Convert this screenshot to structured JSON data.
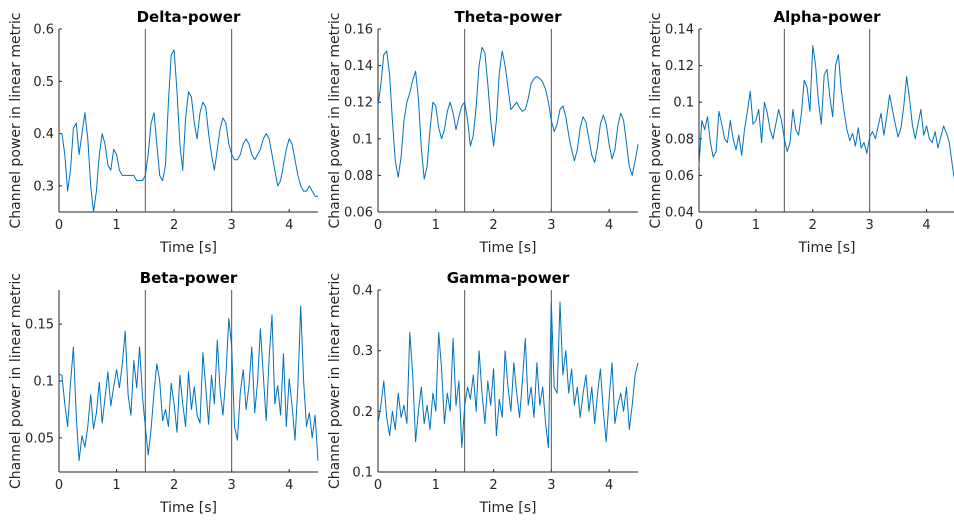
{
  "chart_data": [
    {
      "type": "line",
      "title": "Delta-power",
      "xlabel": "Time [s]",
      "ylabel": "Channel power in linear metric",
      "xlim": [
        0,
        4.5
      ],
      "ylim": [
        0.25,
        0.6
      ],
      "xticks": [
        "0",
        "1",
        "2",
        "3",
        "4"
      ],
      "yticks": [
        "0.3",
        "0.4",
        "0.5",
        "0.6"
      ],
      "xtick_values": [
        0,
        1,
        2,
        3,
        4
      ],
      "ytick_values": [
        0.3,
        0.4,
        0.5,
        0.6
      ],
      "vlines": [
        1.5,
        3.0
      ],
      "color": "#0072BD",
      "x": [
        0,
        0.05,
        0.1,
        0.15,
        0.2,
        0.25,
        0.3,
        0.35,
        0.4,
        0.45,
        0.5,
        0.55,
        0.6,
        0.65,
        0.7,
        0.75,
        0.8,
        0.85,
        0.9,
        0.95,
        1,
        1.05,
        1.1,
        1.15,
        1.2,
        1.25,
        1.3,
        1.35,
        1.4,
        1.45,
        1.5,
        1.55,
        1.6,
        1.65,
        1.7,
        1.75,
        1.8,
        1.85,
        1.9,
        1.95,
        2,
        2.05,
        2.1,
        2.15,
        2.2,
        2.25,
        2.3,
        2.35,
        2.4,
        2.45,
        2.5,
        2.55,
        2.6,
        2.65,
        2.7,
        2.75,
        2.8,
        2.85,
        2.9,
        2.95,
        3,
        3.05,
        3.1,
        3.15,
        3.2,
        3.25,
        3.3,
        3.35,
        3.4,
        3.45,
        3.5,
        3.55,
        3.6,
        3.65,
        3.7,
        3.75,
        3.8,
        3.85,
        3.9,
        3.95,
        4,
        4.05,
        4.1,
        4.15,
        4.2,
        4.25,
        4.3,
        4.35,
        4.4,
        4.45,
        4.5
      ],
      "series": [
        {
          "values": [
            0.4,
            0.4,
            0.36,
            0.29,
            0.33,
            0.41,
            0.42,
            0.36,
            0.4,
            0.44,
            0.39,
            0.3,
            0.25,
            0.29,
            0.36,
            0.4,
            0.38,
            0.34,
            0.33,
            0.37,
            0.36,
            0.33,
            0.32,
            0.32,
            0.32,
            0.32,
            0.32,
            0.31,
            0.31,
            0.31,
            0.32,
            0.36,
            0.42,
            0.44,
            0.38,
            0.32,
            0.31,
            0.34,
            0.46,
            0.55,
            0.56,
            0.48,
            0.38,
            0.33,
            0.43,
            0.48,
            0.47,
            0.42,
            0.39,
            0.44,
            0.46,
            0.45,
            0.4,
            0.36,
            0.33,
            0.37,
            0.41,
            0.43,
            0.42,
            0.38,
            0.36,
            0.35,
            0.35,
            0.36,
            0.38,
            0.39,
            0.38,
            0.36,
            0.35,
            0.36,
            0.37,
            0.39,
            0.4,
            0.39,
            0.36,
            0.33,
            0.3,
            0.31,
            0.34,
            0.37,
            0.39,
            0.38,
            0.35,
            0.32,
            0.3,
            0.29,
            0.29,
            0.3,
            0.29,
            0.28,
            0.28
          ]
        }
      ]
    },
    {
      "type": "line",
      "title": "Theta-power",
      "xlabel": "Time [s]",
      "ylabel": "Channel power in linear metric",
      "xlim": [
        0,
        4.5
      ],
      "ylim": [
        0.06,
        0.16
      ],
      "xticks": [
        "0",
        "1",
        "2",
        "3",
        "4"
      ],
      "yticks": [
        "0.06",
        "0.08",
        "0.1",
        "0.12",
        "0.14",
        "0.16"
      ],
      "xtick_values": [
        0,
        1,
        2,
        3,
        4
      ],
      "ytick_values": [
        0.06,
        0.08,
        0.1,
        0.12,
        0.14,
        0.16
      ],
      "vlines": [
        1.5,
        3.0
      ],
      "color": "#0072BD",
      "x": [
        0,
        0.05,
        0.1,
        0.15,
        0.2,
        0.25,
        0.3,
        0.35,
        0.4,
        0.45,
        0.5,
        0.55,
        0.6,
        0.65,
        0.7,
        0.75,
        0.8,
        0.85,
        0.9,
        0.95,
        1,
        1.05,
        1.1,
        1.15,
        1.2,
        1.25,
        1.3,
        1.35,
        1.4,
        1.45,
        1.5,
        1.55,
        1.6,
        1.65,
        1.7,
        1.75,
        1.8,
        1.85,
        1.9,
        1.95,
        2,
        2.05,
        2.1,
        2.15,
        2.2,
        2.25,
        2.3,
        2.35,
        2.4,
        2.45,
        2.5,
        2.55,
        2.6,
        2.65,
        2.7,
        2.75,
        2.8,
        2.85,
        2.9,
        2.95,
        3,
        3.05,
        3.1,
        3.15,
        3.2,
        3.25,
        3.3,
        3.35,
        3.4,
        3.45,
        3.5,
        3.55,
        3.6,
        3.65,
        3.7,
        3.75,
        3.8,
        3.85,
        3.9,
        3.95,
        4,
        4.05,
        4.1,
        4.15,
        4.2,
        4.25,
        4.3,
        4.35,
        4.4,
        4.45,
        4.5
      ],
      "series": [
        {
          "values": [
            0.118,
            0.13,
            0.146,
            0.148,
            0.135,
            0.11,
            0.088,
            0.079,
            0.09,
            0.11,
            0.12,
            0.125,
            0.132,
            0.137,
            0.122,
            0.095,
            0.078,
            0.085,
            0.105,
            0.12,
            0.118,
            0.106,
            0.1,
            0.105,
            0.115,
            0.12,
            0.114,
            0.105,
            0.112,
            0.118,
            0.12,
            0.11,
            0.096,
            0.102,
            0.118,
            0.14,
            0.15,
            0.147,
            0.13,
            0.11,
            0.096,
            0.11,
            0.136,
            0.148,
            0.14,
            0.128,
            0.116,
            0.118,
            0.12,
            0.117,
            0.115,
            0.116,
            0.122,
            0.13,
            0.133,
            0.134,
            0.133,
            0.131,
            0.127,
            0.12,
            0.11,
            0.104,
            0.108,
            0.116,
            0.118,
            0.112,
            0.102,
            0.094,
            0.088,
            0.094,
            0.106,
            0.112,
            0.109,
            0.1,
            0.091,
            0.087,
            0.096,
            0.108,
            0.113,
            0.108,
            0.097,
            0.089,
            0.094,
            0.107,
            0.114,
            0.11,
            0.098,
            0.085,
            0.08,
            0.088,
            0.097
          ]
        }
      ]
    },
    {
      "type": "line",
      "title": "Alpha-power",
      "xlabel": "Time [s]",
      "ylabel": "Channel power in linear metric",
      "xlim": [
        0,
        4.5
      ],
      "ylim": [
        0.04,
        0.14
      ],
      "xticks": [
        "0",
        "1",
        "2",
        "3",
        "4"
      ],
      "yticks": [
        "0.04",
        "0.06",
        "0.08",
        "0.1",
        "0.12",
        "0.14"
      ],
      "xtick_values": [
        0,
        1,
        2,
        3,
        4
      ],
      "ytick_values": [
        0.04,
        0.06,
        0.08,
        0.1,
        0.12,
        0.14
      ],
      "vlines": [
        1.5,
        3.0
      ],
      "color": "#0072BD",
      "x": [
        0,
        0.05,
        0.1,
        0.15,
        0.2,
        0.25,
        0.3,
        0.35,
        0.4,
        0.45,
        0.5,
        0.55,
        0.6,
        0.65,
        0.7,
        0.75,
        0.8,
        0.85,
        0.9,
        0.95,
        1,
        1.05,
        1.1,
        1.15,
        1.2,
        1.25,
        1.3,
        1.35,
        1.4,
        1.45,
        1.5,
        1.55,
        1.6,
        1.65,
        1.7,
        1.75,
        1.8,
        1.85,
        1.9,
        1.95,
        2,
        2.05,
        2.1,
        2.15,
        2.2,
        2.25,
        2.3,
        2.35,
        2.4,
        2.45,
        2.5,
        2.55,
        2.6,
        2.65,
        2.7,
        2.75,
        2.8,
        2.85,
        2.9,
        2.95,
        3,
        3.05,
        3.1,
        3.15,
        3.2,
        3.25,
        3.3,
        3.35,
        3.4,
        3.45,
        3.5,
        3.55,
        3.6,
        3.65,
        3.7,
        3.75,
        3.8,
        3.85,
        3.9,
        3.95,
        4,
        4.05,
        4.1,
        4.15,
        4.2,
        4.25,
        4.3,
        4.35,
        4.4,
        4.45,
        4.5
      ],
      "series": [
        {
          "values": [
            0.065,
            0.09,
            0.085,
            0.092,
            0.078,
            0.07,
            0.073,
            0.095,
            0.088,
            0.08,
            0.078,
            0.09,
            0.08,
            0.074,
            0.082,
            0.071,
            0.085,
            0.095,
            0.106,
            0.088,
            0.09,
            0.096,
            0.078,
            0.1,
            0.094,
            0.085,
            0.08,
            0.088,
            0.096,
            0.09,
            0.08,
            0.073,
            0.078,
            0.096,
            0.085,
            0.082,
            0.094,
            0.112,
            0.108,
            0.095,
            0.131,
            0.12,
            0.1,
            0.088,
            0.115,
            0.118,
            0.103,
            0.092,
            0.12,
            0.126,
            0.107,
            0.095,
            0.085,
            0.079,
            0.083,
            0.076,
            0.086,
            0.075,
            0.078,
            0.072,
            0.081,
            0.084,
            0.08,
            0.087,
            0.094,
            0.082,
            0.092,
            0.104,
            0.096,
            0.088,
            0.081,
            0.086,
            0.098,
            0.114,
            0.102,
            0.088,
            0.08,
            0.088,
            0.096,
            0.082,
            0.087,
            0.08,
            0.078,
            0.084,
            0.075,
            0.081,
            0.087,
            0.083,
            0.078,
            0.066,
            0.056
          ]
        }
      ]
    },
    {
      "type": "line",
      "title": "Beta-power",
      "xlabel": "Time [s]",
      "ylabel": "Channel power in linear metric",
      "xlim": [
        0,
        4.5
      ],
      "ylim": [
        0.02,
        0.18
      ],
      "xticks": [
        "0",
        "1",
        "2",
        "3",
        "4"
      ],
      "yticks": [
        "0.05",
        "0.1",
        "0.15"
      ],
      "xtick_values": [
        0,
        1,
        2,
        3,
        4
      ],
      "ytick_values": [
        0.05,
        0.1,
        0.15
      ],
      "vlines": [
        1.5,
        3.0
      ],
      "color": "#0072BD",
      "x": [
        0,
        0.05,
        0.1,
        0.15,
        0.2,
        0.25,
        0.3,
        0.35,
        0.4,
        0.45,
        0.5,
        0.55,
        0.6,
        0.65,
        0.7,
        0.75,
        0.8,
        0.85,
        0.9,
        0.95,
        1,
        1.05,
        1.1,
        1.15,
        1.2,
        1.25,
        1.3,
        1.35,
        1.4,
        1.45,
        1.5,
        1.55,
        1.6,
        1.65,
        1.7,
        1.75,
        1.8,
        1.85,
        1.9,
        1.95,
        2,
        2.05,
        2.1,
        2.15,
        2.2,
        2.25,
        2.3,
        2.35,
        2.4,
        2.45,
        2.5,
        2.55,
        2.6,
        2.65,
        2.7,
        2.75,
        2.8,
        2.85,
        2.9,
        2.95,
        3,
        3.05,
        3.1,
        3.15,
        3.2,
        3.25,
        3.3,
        3.35,
        3.4,
        3.45,
        3.5,
        3.55,
        3.6,
        3.65,
        3.7,
        3.75,
        3.8,
        3.85,
        3.9,
        3.95,
        4,
        4.05,
        4.1,
        4.15,
        4.2,
        4.25,
        4.3,
        4.35,
        4.4,
        4.45,
        4.5
      ],
      "series": [
        {
          "values": [
            0.106,
            0.105,
            0.08,
            0.06,
            0.098,
            0.13,
            0.068,
            0.03,
            0.052,
            0.042,
            0.06,
            0.088,
            0.058,
            0.072,
            0.099,
            0.063,
            0.085,
            0.108,
            0.078,
            0.095,
            0.11,
            0.094,
            0.115,
            0.144,
            0.088,
            0.07,
            0.118,
            0.094,
            0.13,
            0.086,
            0.06,
            0.035,
            0.058,
            0.09,
            0.115,
            0.1,
            0.065,
            0.075,
            0.06,
            0.098,
            0.08,
            0.055,
            0.105,
            0.08,
            0.06,
            0.108,
            0.075,
            0.095,
            0.07,
            0.063,
            0.125,
            0.094,
            0.062,
            0.105,
            0.08,
            0.136,
            0.09,
            0.07,
            0.105,
            0.155,
            0.13,
            0.06,
            0.048,
            0.09,
            0.11,
            0.075,
            0.095,
            0.13,
            0.072,
            0.1,
            0.146,
            0.105,
            0.065,
            0.12,
            0.158,
            0.08,
            0.096,
            0.07,
            0.124,
            0.06,
            0.102,
            0.078,
            0.048,
            0.096,
            0.166,
            0.1,
            0.06,
            0.072,
            0.05,
            0.07,
            0.03
          ]
        }
      ]
    },
    {
      "type": "line",
      "title": "Gamma-power",
      "xlabel": "Time [s]",
      "ylabel": "Channel power in linear metric",
      "xlim": [
        0,
        4.5
      ],
      "ylim": [
        0.1,
        0.4
      ],
      "xticks": [
        "0",
        "1",
        "2",
        "3",
        "4"
      ],
      "yticks": [
        "0.1",
        "0.2",
        "0.3",
        "0.4"
      ],
      "xtick_values": [
        0,
        1,
        2,
        3,
        4
      ],
      "ytick_values": [
        0.1,
        0.2,
        0.3,
        0.4
      ],
      "vlines": [
        1.5,
        3.0
      ],
      "color": "#0072BD",
      "x": [
        0,
        0.05,
        0.1,
        0.15,
        0.2,
        0.25,
        0.3,
        0.35,
        0.4,
        0.45,
        0.5,
        0.55,
        0.6,
        0.65,
        0.7,
        0.75,
        0.8,
        0.85,
        0.9,
        0.95,
        1,
        1.05,
        1.1,
        1.15,
        1.2,
        1.25,
        1.3,
        1.35,
        1.4,
        1.45,
        1.5,
        1.55,
        1.6,
        1.65,
        1.7,
        1.75,
        1.8,
        1.85,
        1.9,
        1.95,
        2,
        2.05,
        2.1,
        2.15,
        2.2,
        2.25,
        2.3,
        2.35,
        2.4,
        2.45,
        2.5,
        2.55,
        2.6,
        2.65,
        2.7,
        2.75,
        2.8,
        2.85,
        2.9,
        2.95,
        3,
        3.05,
        3.1,
        3.15,
        3.2,
        3.25,
        3.3,
        3.35,
        3.4,
        3.45,
        3.5,
        3.55,
        3.6,
        3.65,
        3.7,
        3.75,
        3.8,
        3.85,
        3.9,
        3.95,
        4,
        4.05,
        4.1,
        4.15,
        4.2,
        4.25,
        4.3,
        4.35,
        4.4,
        4.45,
        4.5
      ],
      "series": [
        {
          "values": [
            0.18,
            0.21,
            0.25,
            0.19,
            0.16,
            0.2,
            0.17,
            0.23,
            0.19,
            0.21,
            0.18,
            0.33,
            0.26,
            0.15,
            0.2,
            0.24,
            0.18,
            0.21,
            0.17,
            0.23,
            0.2,
            0.33,
            0.27,
            0.18,
            0.23,
            0.2,
            0.32,
            0.21,
            0.25,
            0.14,
            0.21,
            0.24,
            0.22,
            0.26,
            0.2,
            0.3,
            0.23,
            0.18,
            0.25,
            0.21,
            0.27,
            0.16,
            0.22,
            0.19,
            0.3,
            0.24,
            0.2,
            0.28,
            0.23,
            0.19,
            0.25,
            0.32,
            0.21,
            0.24,
            0.19,
            0.28,
            0.21,
            0.24,
            0.18,
            0.14,
            0.38,
            0.24,
            0.23,
            0.38,
            0.26,
            0.3,
            0.23,
            0.27,
            0.21,
            0.24,
            0.19,
            0.23,
            0.26,
            0.2,
            0.24,
            0.18,
            0.23,
            0.27,
            0.2,
            0.15,
            0.22,
            0.28,
            0.18,
            0.21,
            0.23,
            0.2,
            0.24,
            0.17,
            0.21,
            0.26,
            0.28
          ]
        }
      ]
    }
  ]
}
